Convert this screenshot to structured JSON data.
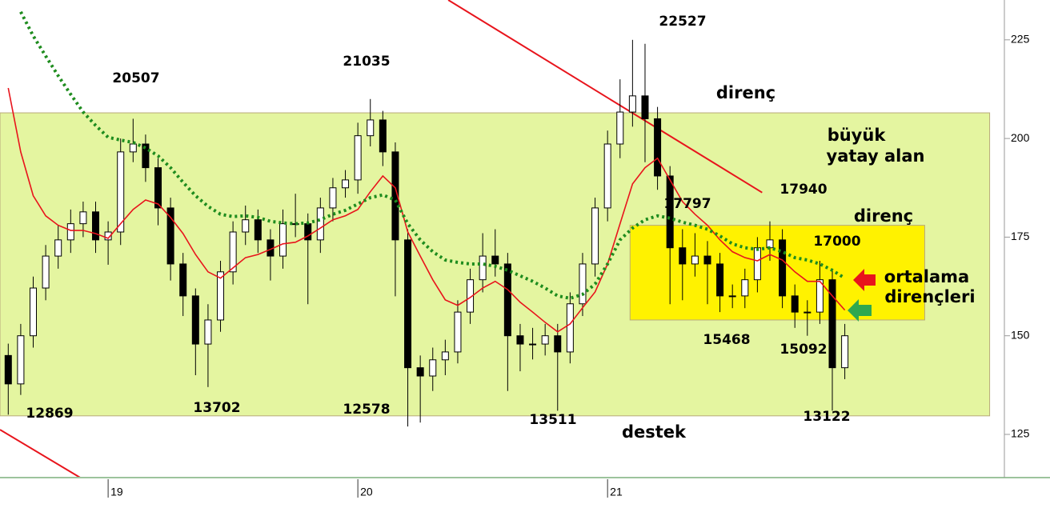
{
  "chart_data": {
    "type": "candlestick",
    "x": [
      18.6,
      18.65,
      18.7,
      18.75,
      18.8,
      18.85,
      18.9,
      18.95,
      19.0,
      19.05,
      19.1,
      19.15,
      19.2,
      19.25,
      19.3,
      19.35,
      19.4,
      19.45,
      19.5,
      19.55,
      19.6,
      19.65,
      19.7,
      19.75,
      19.8,
      19.85,
      19.9,
      19.95,
      20.0,
      20.05,
      20.1,
      20.15,
      20.2,
      20.25,
      20.3,
      20.35,
      20.4,
      20.45,
      20.5,
      20.55,
      20.6,
      20.65,
      20.7,
      20.75,
      20.8,
      20.85,
      20.9,
      20.95,
      21.0,
      21.05,
      21.1,
      21.15,
      21.2,
      21.25,
      21.3,
      21.35,
      21.4,
      21.45,
      21.5,
      21.55,
      21.6,
      21.65,
      21.7,
      21.75,
      21.8,
      21.85,
      21.9,
      21.95
    ],
    "open": [
      145,
      137.8,
      150.0,
      162.1,
      170.2,
      174.3,
      178.4,
      181.4,
      174.3,
      176.3,
      196.6,
      198.6,
      192.6,
      182.4,
      168.2,
      160.1,
      147.9,
      154.0,
      166.2,
      176.3,
      179.4,
      174.3,
      170.2,
      178.4,
      178.4,
      174.3,
      182.4,
      187.5,
      189.5,
      200.7,
      204.7,
      196.6,
      174.3,
      141.9,
      139.8,
      143.9,
      145.9,
      156.0,
      164.2,
      170.2,
      168.2,
      150.0,
      147.9,
      147.9,
      150.0,
      145.9,
      158.1,
      168.2,
      182.4,
      198.6,
      206.7,
      210.8,
      205.0,
      190.5,
      172.3,
      168.2,
      170.2,
      168.2,
      160.1,
      160.1,
      164.2,
      172.3,
      174.3,
      160.1,
      156.0,
      156.0,
      164.2,
      141.9
    ],
    "high": [
      148,
      153,
      165,
      173,
      178,
      182,
      184,
      184,
      179,
      200,
      205,
      201,
      195,
      185,
      171,
      162,
      158,
      169,
      179,
      183,
      182,
      177,
      182,
      186,
      181,
      185,
      190,
      192,
      204,
      210,
      207,
      199,
      177,
      145,
      147,
      149,
      159,
      167,
      176,
      177,
      171,
      153,
      152,
      153,
      153,
      161,
      171,
      185,
      202,
      215,
      225,
      224,
      208,
      193,
      177,
      176,
      174,
      171,
      163,
      167,
      175,
      179,
      177,
      163,
      159,
      169,
      167,
      153
    ],
    "low": [
      130,
      135,
      147,
      159,
      167,
      171,
      175,
      171,
      168,
      173,
      194,
      189,
      178,
      164,
      155,
      140,
      137,
      151,
      163,
      173,
      171,
      164,
      167,
      175,
      158,
      171,
      179,
      185,
      186,
      198,
      193,
      160,
      127,
      128,
      136,
      140,
      143,
      153,
      161,
      165,
      136,
      141,
      144,
      145,
      131,
      143,
      155,
      165,
      179,
      195,
      203,
      194,
      187,
      158,
      159,
      165,
      158,
      156,
      157,
      157,
      161,
      169,
      157,
      152,
      150,
      153,
      131,
      139
    ],
    "close": [
      137.8,
      150.0,
      162.1,
      170.2,
      174.3,
      178.4,
      181.4,
      174.3,
      176.3,
      196.6,
      198.6,
      192.6,
      182.4,
      168.2,
      160.1,
      147.9,
      154.0,
      166.2,
      176.3,
      179.4,
      174.3,
      170.2,
      178.4,
      178.4,
      174.3,
      182.4,
      187.5,
      189.5,
      200.7,
      204.7,
      196.6,
      174.3,
      141.9,
      139.8,
      143.9,
      145.9,
      156.0,
      164.2,
      170.2,
      168.2,
      150.0,
      147.9,
      147.9,
      150.0,
      145.9,
      158.1,
      168.2,
      182.4,
      198.6,
      206.7,
      210.8,
      205.0,
      190.5,
      172.3,
      168.2,
      170.2,
      168.2,
      160.1,
      160.1,
      164.2,
      172.3,
      174.3,
      160.1,
      156.0,
      156.0,
      164.2,
      141.9,
      150.0
    ],
    "lines": [
      {
        "color": "#e8141c",
        "style": "solid",
        "values": [
          212.8,
          196.6,
          185.5,
          180.4,
          178.0,
          176.7,
          176.7,
          175.9,
          174.7,
          178.4,
          182.0,
          184.4,
          183.4,
          180.0,
          175.9,
          170.6,
          166.2,
          164.6,
          167.2,
          169.8,
          170.6,
          171.9,
          173.3,
          173.7,
          175.3,
          177.3,
          179.4,
          180.4,
          182.0,
          186.5,
          190.5,
          187.5,
          176.3,
          170.2,
          164.2,
          159.1,
          157.7,
          159.7,
          162.1,
          163.8,
          161.7,
          158.5,
          156.0,
          153.4,
          151.0,
          153.0,
          157.1,
          161.1,
          168.2,
          178.4,
          188.5,
          192.6,
          195.0,
          189.5,
          184.0,
          180.8,
          178.0,
          174.3,
          171.3,
          169.8,
          169.0,
          170.6,
          169.2,
          166.2,
          163.8,
          163.8,
          160.1,
          156.5
        ]
      },
      {
        "color": "#1e8c1e",
        "style": "dotted",
        "values": [
          null,
          232.1,
          226.0,
          220.9,
          215.9,
          211.2,
          206.7,
          203.3,
          200.3,
          199.6,
          199.0,
          197.6,
          195.6,
          192.6,
          188.9,
          185.5,
          182.8,
          180.8,
          180.2,
          180.4,
          180.0,
          179.0,
          178.6,
          178.4,
          178.6,
          179.4,
          180.8,
          181.8,
          183.4,
          185.0,
          185.7,
          184.4,
          178.4,
          174.3,
          171.3,
          169.2,
          168.6,
          168.2,
          168.2,
          167.6,
          166.6,
          165.2,
          163.8,
          162.1,
          160.1,
          159.5,
          160.5,
          163.1,
          168.2,
          174.3,
          177.3,
          179.4,
          180.4,
          179.8,
          178.8,
          178.0,
          177.0,
          175.3,
          173.3,
          172.3,
          171.9,
          172.3,
          171.3,
          169.8,
          169.2,
          168.2,
          166.6,
          164.6
        ]
      }
    ],
    "trendlines": [
      {
        "color": "#e8141c",
        "x": [
          20.362,
          21.619
        ],
        "y": [
          235.1,
          186.3
        ]
      },
      {
        "color": "#e8141c",
        "x": [
          18.567,
          18.888
        ],
        "y": [
          126.2,
          114.05
        ]
      }
    ],
    "zones": [
      {
        "color": "#e4f5a0",
        "x": [
          18.567,
          22.53
        ],
        "y": [
          129.7,
          206.5
        ]
      },
      {
        "color": "#fff200",
        "x": [
          21.09,
          22.27
        ],
        "y": [
          154,
          178
        ]
      }
    ],
    "xlim": [
      18.567,
      22.573
    ],
    "xticks": [
      19,
      20,
      21
    ],
    "ylim": [
      114.05,
      235.1
    ],
    "yticks": [
      125,
      150,
      175,
      200,
      225
    ],
    "annotations": [
      "20507",
      "21035",
      "22527",
      "12869",
      "13702",
      "12578",
      "13511",
      "destek",
      "13122",
      "15092",
      "15468",
      "17797",
      "17940",
      "17000",
      "direnç",
      "büyük",
      "yatay alan",
      "direnç",
      "ortalama",
      "dirençleri"
    ]
  }
}
